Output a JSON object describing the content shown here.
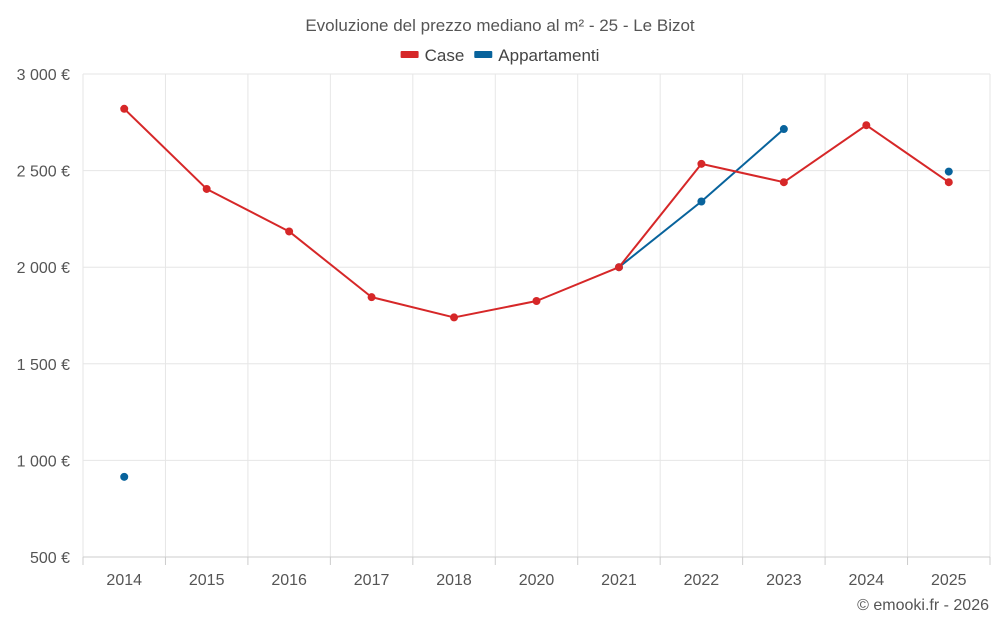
{
  "chart_data": {
    "type": "line",
    "title": "Evoluzione del prezzo mediano al m² - 25 - Le Bizot",
    "categories": [
      "2014",
      "2015",
      "2016",
      "2017",
      "2018",
      "2020",
      "2021",
      "2022",
      "2023",
      "2024",
      "2025"
    ],
    "ylim": [
      500,
      3000
    ],
    "yticks": [
      500,
      1000,
      1500,
      2000,
      2500,
      3000
    ],
    "ytick_labels": [
      "500 €",
      "1 000 €",
      "1 500 €",
      "2 000 €",
      "2 500 €",
      "3 000 €"
    ],
    "grid": true,
    "legend_position": "top-center",
    "series": [
      {
        "name": "Case",
        "color": "#d62728",
        "values": [
          2820,
          2405,
          2185,
          1845,
          1740,
          1825,
          2000,
          2535,
          2440,
          2735,
          2440
        ]
      },
      {
        "name": "Appartamenti",
        "color": "#08639c",
        "values": [
          915,
          null,
          null,
          null,
          null,
          null,
          2000,
          2340,
          2715,
          null,
          2495
        ]
      }
    ],
    "credit": "© emooki.fr - 2026"
  }
}
